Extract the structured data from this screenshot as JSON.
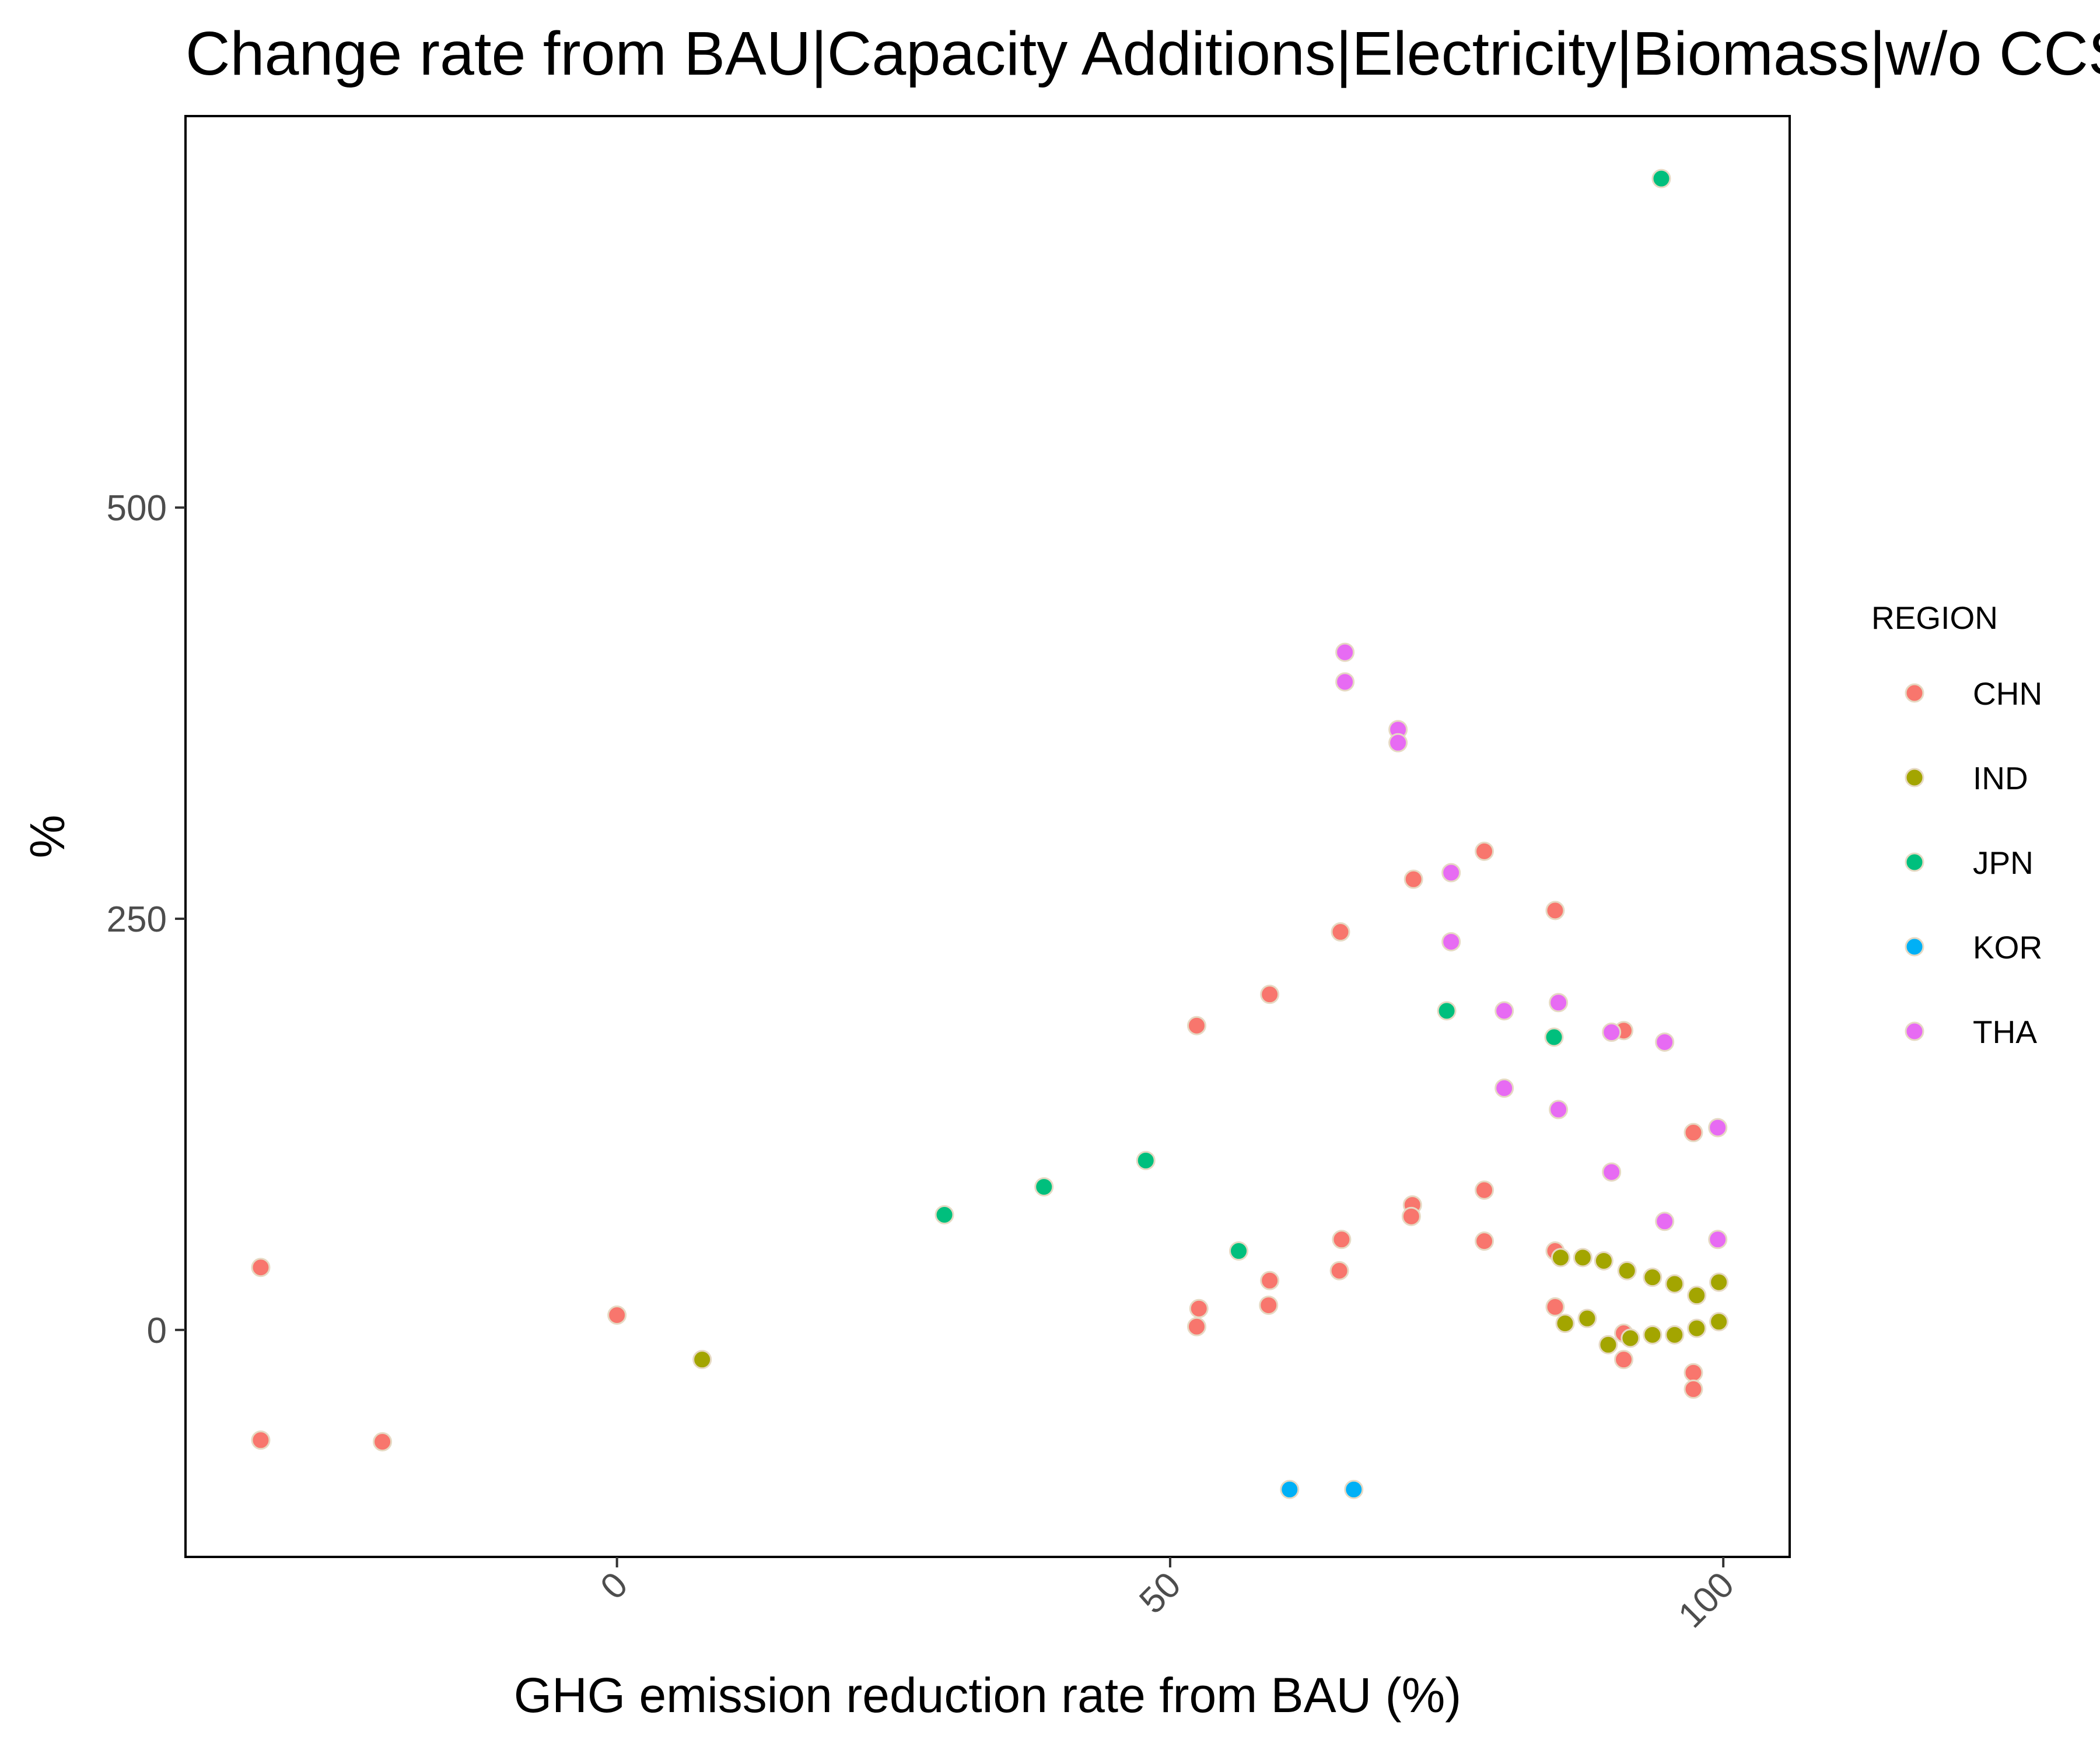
{
  "chart_data": {
    "type": "scatter",
    "title": "Change rate from BAU|Capacity Additions|Electricity|Biomass|w/o CCS",
    "xlabel": "GHG emission reduction rate from BAU (%)",
    "ylabel": "%",
    "xlim": [
      -39,
      106
    ],
    "ylim": [
      -138,
      738
    ],
    "x_ticks": [
      0,
      50,
      100
    ],
    "y_ticks": [
      0,
      250,
      500
    ],
    "grid": false,
    "legend": {
      "title": "REGION",
      "position": "right",
      "entries": [
        "CHN",
        "IND",
        "JPN",
        "KOR",
        "THA"
      ]
    },
    "colors": {
      "CHN": "#F8766D",
      "IND": "#A3A500",
      "JPN": "#00BF7D",
      "KOR": "#00B0F6",
      "THA": "#E76BF3"
    },
    "series": [
      {
        "name": "CHN",
        "points": [
          [
            -32.2,
            38
          ],
          [
            -32.2,
            -67
          ],
          [
            -21.2,
            -68
          ],
          [
            0,
            9
          ],
          [
            52.4,
            185
          ],
          [
            52.4,
            2
          ],
          [
            52.6,
            13
          ],
          [
            59,
            204
          ],
          [
            59,
            30
          ],
          [
            58.9,
            15
          ],
          [
            65.4,
            242
          ],
          [
            65.5,
            55
          ],
          [
            65.3,
            36
          ],
          [
            72,
            274
          ],
          [
            71.9,
            76
          ],
          [
            71.8,
            69
          ],
          [
            78.4,
            291
          ],
          [
            78.4,
            85
          ],
          [
            78.4,
            54
          ],
          [
            84.8,
            255
          ],
          [
            84.8,
            48
          ],
          [
            84.8,
            14
          ],
          [
            91,
            182
          ],
          [
            91,
            -2
          ],
          [
            91,
            -18
          ],
          [
            97.3,
            120
          ],
          [
            97.3,
            -26
          ],
          [
            97.3,
            -36
          ]
        ]
      },
      {
        "name": "IND",
        "points": [
          [
            7.7,
            -18
          ],
          [
            85.3,
            44
          ],
          [
            85.7,
            4
          ],
          [
            87.3,
            44
          ],
          [
            87.7,
            7
          ],
          [
            89.2,
            42
          ],
          [
            89.6,
            -9
          ],
          [
            91.3,
            36
          ],
          [
            91.6,
            -5
          ],
          [
            93.6,
            32
          ],
          [
            93.6,
            -3
          ],
          [
            95.6,
            28
          ],
          [
            95.6,
            -3
          ],
          [
            97.6,
            21
          ],
          [
            97.6,
            1
          ],
          [
            99.6,
            29
          ],
          [
            99.6,
            5
          ]
        ]
      },
      {
        "name": "JPN",
        "points": [
          [
            29.6,
            70
          ],
          [
            38.6,
            87
          ],
          [
            47.8,
            103
          ],
          [
            56.2,
            48
          ],
          [
            75,
            194
          ],
          [
            84.7,
            178
          ],
          [
            94.4,
            700
          ]
        ]
      },
      {
        "name": "KOR",
        "points": [
          [
            60.8,
            -97
          ],
          [
            66.6,
            -97
          ]
        ]
      },
      {
        "name": "THA",
        "points": [
          [
            65.8,
            412
          ],
          [
            65.8,
            394
          ],
          [
            70.6,
            365
          ],
          [
            70.6,
            357
          ],
          [
            75.4,
            278
          ],
          [
            75.4,
            236
          ],
          [
            80.2,
            194
          ],
          [
            80.2,
            147
          ],
          [
            85.1,
            199
          ],
          [
            85.1,
            134
          ],
          [
            89.9,
            181
          ],
          [
            89.9,
            96
          ],
          [
            94.7,
            175
          ],
          [
            94.7,
            66
          ],
          [
            99.5,
            123
          ],
          [
            99.5,
            55
          ]
        ]
      }
    ]
  }
}
